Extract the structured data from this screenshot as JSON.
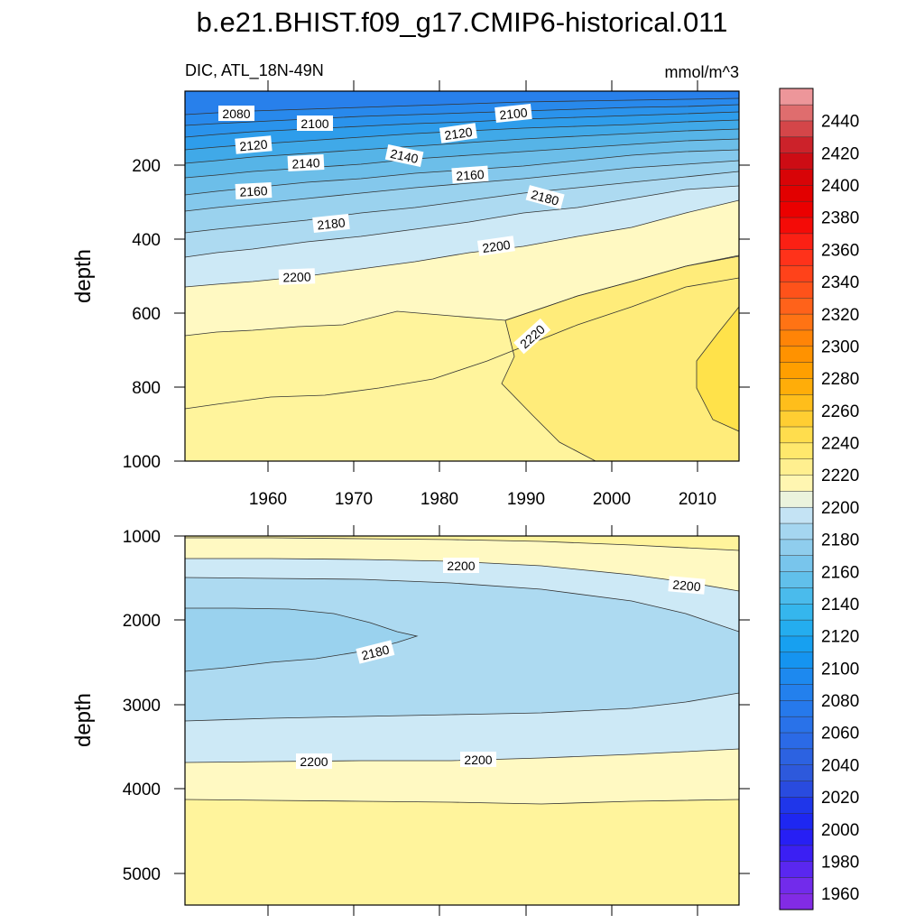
{
  "title": "b.e21.BHIST.f09_g17.CMIP6-historical.011",
  "colors": {
    "deep_yellow": "#FFE24A",
    "yellow_2220": "#FFEC7A",
    "yellow_2210": "#FFF49C",
    "cream_2200": "#FFF9C2",
    "pale_blue_2190": "#CDE9F6",
    "light_blue_2180": "#ADDAF1",
    "blue_2160": "#84C8EC",
    "line": "#333333"
  },
  "chart_data": [
    {
      "type": "contour",
      "panel": "upper",
      "variable_label": "DIC, ATL_18N-49N",
      "units": "mmol/m^3",
      "ylabel": "depth",
      "xlabel": "",
      "xlim": [
        1950,
        2015
      ],
      "ylim": [
        0,
        1000
      ],
      "y_inverted": true,
      "x_ticks": [
        1960,
        1970,
        1980,
        1990,
        2000,
        2010
      ],
      "y_ticks": [
        200,
        400,
        600,
        800,
        1000
      ],
      "contour_levels": [
        2080,
        2100,
        2120,
        2140,
        2160,
        2180,
        2200,
        2220
      ],
      "contour_labels": [
        {
          "text": "2080",
          "x": 1953,
          "y": 105
        },
        {
          "text": "2100",
          "x": 1966,
          "y": 115
        },
        {
          "text": "2120",
          "x": 1958,
          "y": 160
        },
        {
          "text": "2140",
          "x": 1964,
          "y": 200
        },
        {
          "text": "2140",
          "x": 1976,
          "y": 180
        },
        {
          "text": "2120",
          "x": 1980,
          "y": 130
        },
        {
          "text": "2100",
          "x": 1988,
          "y": 105
        },
        {
          "text": "2160",
          "x": 1958,
          "y": 250
        },
        {
          "text": "2160",
          "x": 1983,
          "y": 225
        },
        {
          "text": "2180",
          "x": 1992,
          "y": 290
        },
        {
          "text": "2180",
          "x": 1966,
          "y": 335
        },
        {
          "text": "2200",
          "x": 1986,
          "y": 420
        },
        {
          "text": "2200",
          "x": 1963,
          "y": 520
        },
        {
          "text": "2220",
          "x": 1990,
          "y": 670
        }
      ]
    },
    {
      "type": "contour",
      "panel": "lower",
      "ylabel": "depth",
      "xlabel": "",
      "xlim": [
        1950,
        2015
      ],
      "ylim": [
        1000,
        5400
      ],
      "y_inverted": true,
      "x_ticks": [
        1960,
        1970,
        1980,
        1990,
        2000,
        2010
      ],
      "y_ticks": [
        1000,
        2000,
        3000,
        4000,
        5000
      ],
      "contour_levels": [
        2180,
        2190,
        2200,
        2210
      ],
      "contour_labels": [
        {
          "text": "2200",
          "x": 1983,
          "y": 1350
        },
        {
          "text": "2200",
          "x": 2008,
          "y": 1590
        },
        {
          "text": "2180",
          "x": 1974,
          "y": 2320
        },
        {
          "text": "2200",
          "x": 1965,
          "y": 3670
        },
        {
          "text": "2200",
          "x": 1984,
          "y": 3660
        }
      ]
    },
    {
      "type": "colorbar",
      "orientation": "vertical",
      "range": [
        1950,
        2460
      ],
      "step": 10,
      "tick_labels": [
        1960,
        1980,
        2000,
        2020,
        2040,
        2060,
        2080,
        2100,
        2120,
        2140,
        2160,
        2180,
        2200,
        2220,
        2240,
        2260,
        2280,
        2300,
        2320,
        2340,
        2360,
        2380,
        2400,
        2420,
        2440
      ]
    }
  ]
}
